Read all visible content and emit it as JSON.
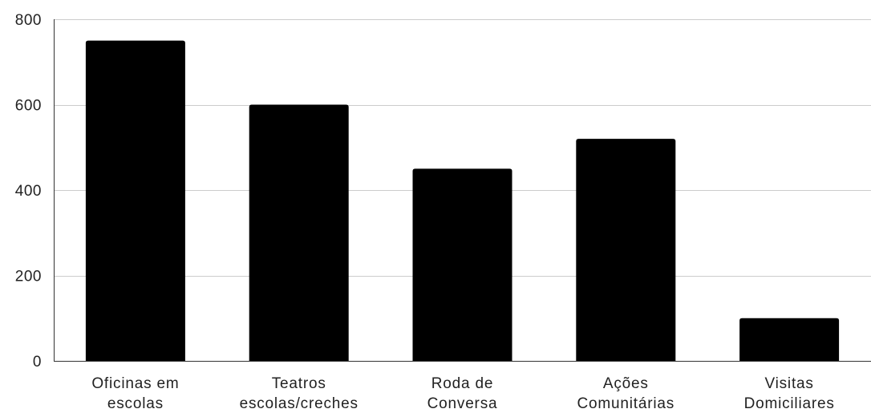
{
  "chart_data": {
    "type": "bar",
    "categories": [
      [
        "Oficinas em",
        "escolas"
      ],
      [
        "Teatros",
        "escolas/creches"
      ],
      [
        "Roda de",
        "Conversa"
      ],
      [
        "Ações",
        "Comunitárias"
      ],
      [
        "Visitas",
        "Domiciliares"
      ]
    ],
    "values": [
      750,
      600,
      450,
      520,
      100
    ],
    "ylim": [
      0,
      800
    ],
    "yticks": [
      0,
      200,
      400,
      600,
      800
    ],
    "title": "",
    "xlabel": "",
    "ylabel": "",
    "grid": true,
    "bar_color": "#000000",
    "grid_color": "#cccccc",
    "axis_color": "#333333"
  }
}
